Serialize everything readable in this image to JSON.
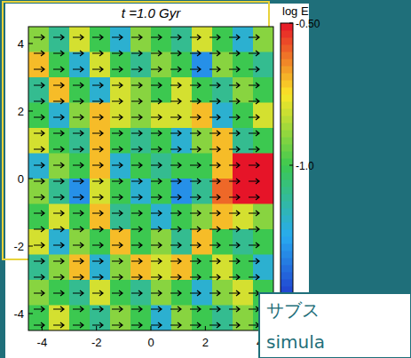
{
  "chart_data": {
    "type": "heatmap",
    "title": "t =1.0 Gyr",
    "xlim": [
      -4.5,
      4.5
    ],
    "ylim": [
      -4.5,
      4.5
    ],
    "xticks": [
      -4,
      -2,
      0,
      2,
      4
    ],
    "yticks": [
      -4,
      -2,
      0,
      2,
      4
    ],
    "cells": [
      [
        -0.9,
        -1.1,
        -0.8,
        -1.0,
        -1.2,
        -0.9,
        -1.0,
        -1.1,
        -0.8,
        -1.0,
        -1.2,
        -0.9
      ],
      [
        -0.7,
        -1.0,
        -1.2,
        -0.8,
        -1.0,
        -1.1,
        -0.9,
        -1.0,
        -1.3,
        -0.9,
        -1.0,
        -1.1
      ],
      [
        -1.1,
        -0.7,
        -1.0,
        -1.2,
        -0.8,
        -0.9,
        -1.0,
        -0.8,
        -1.0,
        -1.1,
        -0.9,
        -1.0
      ],
      [
        -1.0,
        -1.2,
        -0.9,
        -0.7,
        -0.8,
        -0.9,
        -0.8,
        -0.8,
        -0.7,
        -1.2,
        -1.0,
        -0.8
      ],
      [
        -0.8,
        -1.0,
        -1.1,
        -0.7,
        -1.0,
        -1.1,
        -1.0,
        -1.2,
        -0.9,
        -0.7,
        -1.1,
        -1.0
      ],
      [
        -1.2,
        -0.9,
        -1.0,
        -0.7,
        -1.2,
        -1.0,
        -1.1,
        -1.0,
        -1.0,
        -0.7,
        -0.5,
        -0.5
      ],
      [
        -0.9,
        -1.1,
        -1.3,
        -0.8,
        -1.0,
        -1.2,
        -1.0,
        -1.3,
        -1.1,
        -0.6,
        -0.5,
        -0.5
      ],
      [
        -1.0,
        -0.8,
        -1.0,
        -0.7,
        -1.1,
        -1.0,
        -1.2,
        -1.0,
        -0.9,
        -0.7,
        -0.8,
        -0.9
      ],
      [
        -0.8,
        -1.2,
        -0.9,
        -1.0,
        -0.7,
        -1.0,
        -0.9,
        -1.1,
        -0.7,
        -1.0,
        -1.1,
        -1.0
      ],
      [
        -1.1,
        -0.9,
        -0.7,
        -1.2,
        -0.9,
        -0.7,
        -0.8,
        -0.7,
        -1.0,
        -0.8,
        -1.0,
        -1.2
      ],
      [
        -0.9,
        -1.0,
        -1.1,
        -0.8,
        -1.0,
        -1.1,
        -0.9,
        -1.0,
        -1.2,
        -0.9,
        -0.8,
        -1.0
      ],
      [
        -1.0,
        -0.8,
        -1.0,
        -1.1,
        -0.9,
        -1.0,
        -1.2,
        -0.9,
        -1.0,
        -1.1,
        -0.9,
        -1.0
      ]
    ],
    "colorbar": {
      "label": "log E",
      "lim": [
        -1.5,
        -0.5
      ],
      "ticks": [
        {
          "value": -0.5,
          "label": "-0.50"
        },
        {
          "value": -1.0,
          "label": "-1.0"
        }
      ]
    },
    "annotations": [
      "サブス",
      "simula"
    ]
  }
}
